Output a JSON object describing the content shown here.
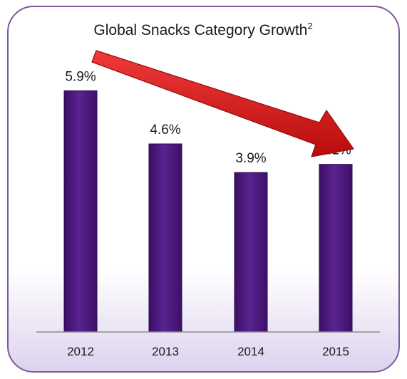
{
  "chart_data": {
    "type": "bar",
    "title": "Global Snacks Category Growth",
    "title_superscript": "2",
    "categories": [
      "2012",
      "2013",
      "2014",
      "2015"
    ],
    "values": [
      5.9,
      4.6,
      3.9,
      4.1
    ],
    "data_labels": [
      "5.9%",
      "4.6%",
      "3.9%",
      "4.1%"
    ],
    "ylim": [
      0,
      6.9
    ],
    "grid": false,
    "legend": "none",
    "bar_color": "#4b1a7a",
    "arrow_color": "#d41414",
    "frame_border_color": "#7b5a9e"
  }
}
